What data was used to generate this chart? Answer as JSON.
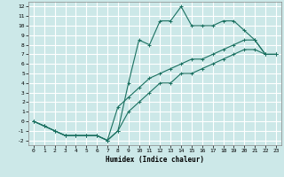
{
  "xlabel": "Humidex (Indice chaleur)",
  "bg_color": "#cce8e8",
  "grid_color": "#ffffff",
  "line_color": "#1a7060",
  "xlim": [
    -0.5,
    23.5
  ],
  "ylim": [
    -2.5,
    12.5
  ],
  "xticks": [
    0,
    1,
    2,
    3,
    4,
    5,
    6,
    7,
    8,
    9,
    10,
    11,
    12,
    13,
    14,
    15,
    16,
    17,
    18,
    19,
    20,
    21,
    22,
    23
  ],
  "yticks": [
    -2,
    -1,
    0,
    1,
    2,
    3,
    4,
    5,
    6,
    7,
    8,
    9,
    10,
    11,
    12
  ],
  "line1_x": [
    0,
    1,
    2,
    3,
    4,
    5,
    6,
    7,
    8,
    9,
    10,
    11,
    12,
    13,
    14,
    15,
    16,
    17,
    18,
    19,
    20,
    21,
    22,
    23
  ],
  "line1_y": [
    0,
    -0.5,
    -1,
    -1.5,
    -1.5,
    -1.5,
    -1.5,
    -2,
    -1,
    4,
    8.5,
    8,
    10.5,
    10.5,
    12,
    10,
    10,
    10,
    10.5,
    10.5,
    9.5,
    8.5,
    7,
    7
  ],
  "line2_x": [
    0,
    1,
    2,
    3,
    4,
    5,
    6,
    7,
    8,
    9,
    10,
    11,
    12,
    13,
    14,
    15,
    16,
    17,
    18,
    19,
    20,
    21,
    22,
    23
  ],
  "line2_y": [
    0,
    -0.5,
    -1,
    -1.5,
    -1.5,
    -1.5,
    -1.5,
    -2,
    1.5,
    2.5,
    3.5,
    4.5,
    5,
    5.5,
    6,
    6.5,
    6.5,
    7,
    7.5,
    8,
    8.5,
    8.5,
    7,
    7
  ],
  "line3_x": [
    0,
    1,
    2,
    3,
    4,
    5,
    6,
    7,
    8,
    9,
    10,
    11,
    12,
    13,
    14,
    15,
    16,
    17,
    18,
    19,
    20,
    21,
    22,
    23
  ],
  "line3_y": [
    0,
    -0.5,
    -1,
    -1.5,
    -1.5,
    -1.5,
    -1.5,
    -2,
    -1,
    1,
    2,
    3,
    4,
    4,
    5,
    5,
    5.5,
    6,
    6.5,
    7,
    7.5,
    7.5,
    7,
    7
  ]
}
